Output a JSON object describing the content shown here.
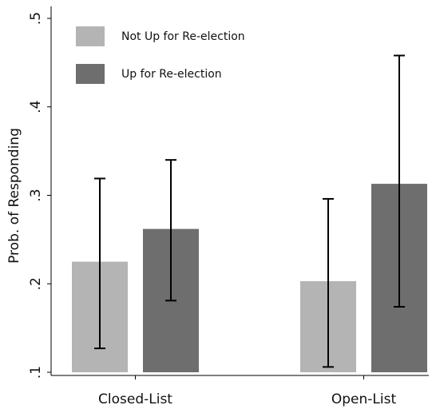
{
  "chart_data": {
    "type": "bar",
    "y_label": "Prob. of Responding",
    "categories": [
      "Closed-List",
      "Open-List"
    ],
    "series": [
      {
        "name": "Not Up for Re-election",
        "color": "#b4b4b4",
        "values": [
          0.225,
          0.203
        ],
        "lower": [
          0.127,
          0.106
        ],
        "upper": [
          0.319,
          0.296
        ]
      },
      {
        "name": "Up for Re-election",
        "color": "#6e6e6e",
        "values": [
          0.262,
          0.313
        ],
        "lower": [
          0.181,
          0.174
        ],
        "upper": [
          0.34,
          0.458
        ]
      }
    ],
    "error_color": "#000000",
    "ylim": [
      0.1,
      0.5
    ],
    "yticks": [
      {
        "value": 0.1,
        "label": ".1"
      },
      {
        "value": 0.2,
        "label": ".2"
      },
      {
        "value": 0.3,
        "label": ".3"
      },
      {
        "value": 0.4,
        "label": ".4"
      },
      {
        "value": 0.5,
        "label": ".5"
      }
    ],
    "legend": "top-left"
  }
}
